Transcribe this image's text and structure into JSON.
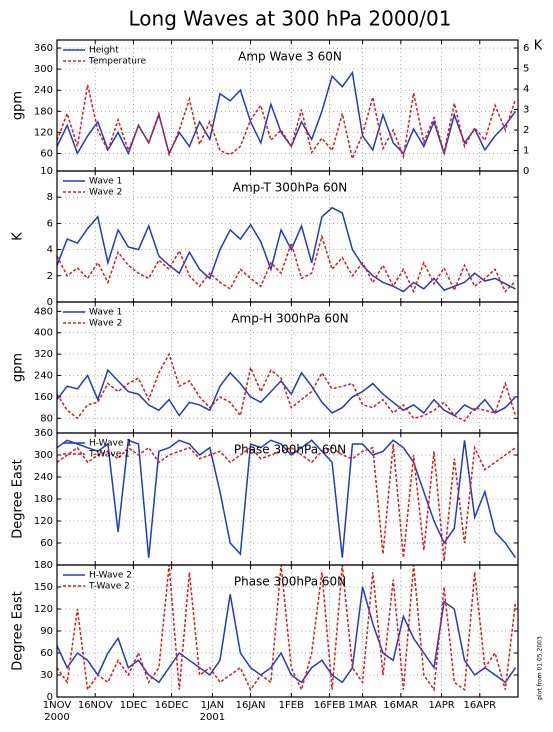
{
  "title": "Long Waves at 300 hPa 2000/01",
  "footnote": "plot from 01.05.2003",
  "chart_data": [
    {
      "type": "line",
      "title": "Amp Wave 3 60N",
      "ylabel": "gpm",
      "y2label": "K",
      "grid": true,
      "legend": "upper left",
      "x": [
        "2000-11-01",
        "2000-11-05",
        "2000-11-09",
        "2000-11-13",
        "2000-11-17",
        "2000-11-21",
        "2000-11-25",
        "2000-11-29",
        "2000-12-03",
        "2000-12-07",
        "2000-12-11",
        "2000-12-15",
        "2000-12-19",
        "2000-12-23",
        "2000-12-27",
        "2000-12-31",
        "2001-01-04",
        "2001-01-08",
        "2001-01-12",
        "2001-01-16",
        "2001-01-20",
        "2001-01-24",
        "2001-01-28",
        "2001-02-01",
        "2001-02-05",
        "2001-02-09",
        "2001-02-13",
        "2001-02-17",
        "2001-02-21",
        "2001-02-25",
        "2001-03-01",
        "2001-03-05",
        "2001-03-09",
        "2001-03-13",
        "2001-03-17",
        "2001-03-21",
        "2001-03-25",
        "2001-03-29",
        "2001-04-02",
        "2001-04-06",
        "2001-04-10",
        "2001-04-14",
        "2001-04-18",
        "2001-04-22",
        "2001-04-26",
        "2001-04-30"
      ],
      "ylim": [
        10,
        383
      ],
      "yticks": [
        10,
        60,
        120,
        180,
        240,
        300,
        360
      ],
      "y2lim": [
        0,
        6.39
      ],
      "y2ticks": [
        0,
        1,
        2,
        3,
        4,
        5,
        6
      ],
      "series": [
        {
          "name": "Height",
          "color": "#1f3cc8",
          "style": "solid",
          "values": [
            80,
            140,
            60,
            110,
            150,
            70,
            120,
            60,
            140,
            90,
            170,
            60,
            120,
            80,
            150,
            100,
            230,
            210,
            240,
            150,
            90,
            200,
            120,
            80,
            150,
            100,
            180,
            280,
            250,
            290,
            110,
            70,
            170,
            90,
            60,
            130,
            80,
            150,
            60,
            170,
            90,
            130,
            70,
            110,
            140,
            180
          ]
        },
        {
          "name": "Temperature",
          "color": "#e01a1a",
          "style": "dashed",
          "axis": "y2",
          "values": [
            1.5,
            2.8,
            1.2,
            4.2,
            2.0,
            1.0,
            2.5,
            1.0,
            2.2,
            1.4,
            2.8,
            0.8,
            2.0,
            3.5,
            1.3,
            2.4,
            1.0,
            0.8,
            1.2,
            2.5,
            3.2,
            1.5,
            2.0,
            1.2,
            3.0,
            0.9,
            1.6,
            1.0,
            2.8,
            0.6,
            1.8,
            3.6,
            1.1,
            2.0,
            0.7,
            3.8,
            1.4,
            2.6,
            0.9,
            3.3,
            1.2,
            2.1,
            1.5,
            3.2,
            2.0,
            3.5
          ]
        }
      ]
    },
    {
      "type": "line",
      "title": "Amp-T 300hPa 60N",
      "ylabel": "K",
      "grid": true,
      "legend": "upper left",
      "x": [
        "2000-11-01",
        "2000-11-05",
        "2000-11-09",
        "2000-11-13",
        "2000-11-17",
        "2000-11-21",
        "2000-11-25",
        "2000-11-29",
        "2000-12-03",
        "2000-12-07",
        "2000-12-11",
        "2000-12-15",
        "2000-12-19",
        "2000-12-23",
        "2000-12-27",
        "2000-12-31",
        "2001-01-04",
        "2001-01-08",
        "2001-01-12",
        "2001-01-16",
        "2001-01-20",
        "2001-01-24",
        "2001-01-28",
        "2001-02-01",
        "2001-02-05",
        "2001-02-09",
        "2001-02-13",
        "2001-02-17",
        "2001-02-21",
        "2001-02-25",
        "2001-03-01",
        "2001-03-05",
        "2001-03-09",
        "2001-03-13",
        "2001-03-17",
        "2001-03-21",
        "2001-03-25",
        "2001-03-29",
        "2001-04-02",
        "2001-04-06",
        "2001-04-10",
        "2001-04-14",
        "2001-04-18",
        "2001-04-22",
        "2001-04-26",
        "2001-04-30"
      ],
      "ylim": [
        0,
        10
      ],
      "yticks": [
        0,
        2,
        4,
        6,
        8
      ],
      "series": [
        {
          "name": "Wave 1",
          "color": "#1f3cc8",
          "style": "solid",
          "values": [
            2.8,
            4.8,
            4.5,
            5.6,
            6.5,
            3.0,
            5.5,
            4.2,
            4.0,
            5.8,
            3.5,
            2.8,
            2.2,
            3.8,
            2.5,
            1.8,
            4.0,
            5.5,
            4.8,
            5.9,
            4.6,
            2.5,
            5.5,
            4.0,
            5.8,
            3.0,
            6.5,
            7.2,
            6.8,
            4.0,
            2.8,
            2.0,
            1.5,
            1.2,
            0.8,
            1.5,
            1.0,
            1.8,
            0.9,
            1.2,
            1.5,
            2.2,
            1.6,
            1.8,
            1.4,
            1.0
          ]
        },
        {
          "name": "Wave 2",
          "color": "#e01a1a",
          "style": "dashed",
          "values": [
            3.5,
            2.0,
            2.6,
            1.8,
            3.0,
            1.5,
            3.8,
            2.8,
            2.2,
            1.8,
            3.2,
            2.5,
            3.9,
            2.0,
            1.2,
            2.2,
            1.5,
            1.0,
            2.5,
            1.8,
            1.2,
            3.0,
            2.2,
            4.5,
            1.8,
            2.2,
            5.0,
            2.5,
            3.4,
            2.0,
            3.0,
            1.5,
            2.8,
            1.2,
            2.5,
            0.8,
            3.0,
            1.4,
            2.6,
            0.9,
            2.8,
            1.2,
            1.8,
            2.5,
            0.8,
            1.6
          ]
        }
      ]
    },
    {
      "type": "line",
      "title": "Amp-H 300hPa 60N",
      "ylabel": "gpm",
      "grid": true,
      "legend": "upper left",
      "x": [
        "2000-11-01",
        "2000-11-05",
        "2000-11-09",
        "2000-11-13",
        "2000-11-17",
        "2000-11-21",
        "2000-11-25",
        "2000-11-29",
        "2000-12-03",
        "2000-12-07",
        "2000-12-11",
        "2000-12-15",
        "2000-12-19",
        "2000-12-23",
        "2000-12-27",
        "2000-12-31",
        "2001-01-04",
        "2001-01-08",
        "2001-01-12",
        "2001-01-16",
        "2001-01-20",
        "2001-01-24",
        "2001-01-28",
        "2001-02-01",
        "2001-02-05",
        "2001-02-09",
        "2001-02-13",
        "2001-02-17",
        "2001-02-21",
        "2001-02-25",
        "2001-03-01",
        "2001-03-05",
        "2001-03-09",
        "2001-03-13",
        "2001-03-17",
        "2001-03-21",
        "2001-03-25",
        "2001-03-29",
        "2001-04-02",
        "2001-04-06",
        "2001-04-10",
        "2001-04-14",
        "2001-04-18",
        "2001-04-22",
        "2001-04-26",
        "2001-04-30"
      ],
      "ylim": [
        25,
        515
      ],
      "yticks": [
        80,
        160,
        240,
        320,
        400,
        480
      ],
      "series": [
        {
          "name": "Wave 1",
          "color": "#1f3cc8",
          "style": "solid",
          "values": [
            150,
            200,
            190,
            240,
            150,
            260,
            220,
            180,
            170,
            130,
            110,
            150,
            90,
            140,
            130,
            110,
            200,
            250,
            210,
            160,
            140,
            180,
            220,
            170,
            250,
            200,
            140,
            100,
            120,
            160,
            180,
            210,
            170,
            140,
            110,
            130,
            100,
            150,
            110,
            90,
            130,
            110,
            150,
            100,
            120,
            160
          ]
        },
        {
          "name": "Wave 2",
          "color": "#e01a1a",
          "style": "dashed",
          "values": [
            170,
            110,
            80,
            130,
            140,
            210,
            180,
            210,
            230,
            150,
            250,
            320,
            200,
            220,
            160,
            120,
            160,
            140,
            90,
            270,
            180,
            260,
            230,
            120,
            150,
            180,
            250,
            190,
            200,
            210,
            130,
            120,
            150,
            100,
            130,
            80,
            90,
            110,
            140,
            90,
            70,
            120,
            110,
            100,
            210,
            90
          ]
        }
      ]
    },
    {
      "type": "line",
      "title": "Phase 300hPa 60N",
      "ylabel": "Degree East",
      "grid": true,
      "legend": "upper left",
      "x": [
        "2000-11-01",
        "2000-11-05",
        "2000-11-09",
        "2000-11-13",
        "2000-11-17",
        "2000-11-21",
        "2000-11-25",
        "2000-11-29",
        "2000-12-03",
        "2000-12-07",
        "2000-12-11",
        "2000-12-15",
        "2000-12-19",
        "2000-12-23",
        "2000-12-27",
        "2000-12-31",
        "2001-01-04",
        "2001-01-08",
        "2001-01-12",
        "2001-01-16",
        "2001-01-20",
        "2001-01-24",
        "2001-01-28",
        "2001-02-01",
        "2001-02-05",
        "2001-02-09",
        "2001-02-13",
        "2001-02-17",
        "2001-02-21",
        "2001-02-25",
        "2001-03-01",
        "2001-03-05",
        "2001-03-09",
        "2001-03-13",
        "2001-03-17",
        "2001-03-21",
        "2001-03-25",
        "2001-03-29",
        "2001-04-02",
        "2001-04-06",
        "2001-04-10",
        "2001-04-14",
        "2001-04-18",
        "2001-04-22",
        "2001-04-26",
        "2001-04-30"
      ],
      "ylim": [
        0,
        360
      ],
      "yticks": [
        60,
        120,
        180,
        240,
        300,
        360
      ],
      "series": [
        {
          "name": "H-Wave 1",
          "color": "#1f3cc8",
          "style": "solid",
          "values": [
            320,
            340,
            330,
            320,
            310,
            330,
            90,
            340,
            330,
            20,
            310,
            320,
            340,
            330,
            300,
            320,
            200,
            60,
            30,
            330,
            320,
            340,
            330,
            300,
            320,
            340,
            310,
            280,
            20,
            330,
            330,
            300,
            310,
            340,
            320,
            280,
            200,
            120,
            60,
            100,
            340,
            130,
            200,
            90,
            60,
            20
          ]
        },
        {
          "name": "T-Wave 1",
          "color": "#e01a1a",
          "style": "dashed",
          "values": [
            280,
            300,
            320,
            280,
            300,
            310,
            290,
            320,
            300,
            320,
            280,
            300,
            310,
            320,
            290,
            300,
            310,
            280,
            300,
            320,
            290,
            300,
            310,
            320,
            300,
            280,
            310,
            320,
            300,
            290,
            310,
            320,
            30,
            330,
            20,
            300,
            40,
            310,
            10,
            290,
            60,
            320,
            260,
            280,
            300,
            320
          ]
        }
      ]
    },
    {
      "type": "line",
      "title": "Phase 300hPa 60N",
      "ylabel": "Degree East",
      "grid": true,
      "legend": "upper left",
      "x": [
        "2000-11-01",
        "2000-11-05",
        "2000-11-09",
        "2000-11-13",
        "2000-11-17",
        "2000-11-21",
        "2000-11-25",
        "2000-11-29",
        "2000-12-03",
        "2000-12-07",
        "2000-12-11",
        "2000-12-15",
        "2000-12-19",
        "2000-12-23",
        "2000-12-27",
        "2000-12-31",
        "2001-01-04",
        "2001-01-08",
        "2001-01-12",
        "2001-01-16",
        "2001-01-20",
        "2001-01-24",
        "2001-01-28",
        "2001-02-01",
        "2001-02-05",
        "2001-02-09",
        "2001-02-13",
        "2001-02-17",
        "2001-02-21",
        "2001-02-25",
        "2001-03-01",
        "2001-03-05",
        "2001-03-09",
        "2001-03-13",
        "2001-03-17",
        "2001-03-21",
        "2001-03-25",
        "2001-03-29",
        "2001-04-02",
        "2001-04-06",
        "2001-04-10",
        "2001-04-14",
        "2001-04-18",
        "2001-04-22",
        "2001-04-26",
        "2001-04-30"
      ],
      "ylim": [
        0,
        180
      ],
      "yticks": [
        0,
        30,
        60,
        90,
        120,
        150,
        180
      ],
      "xlim": [
        "2000-11-01",
        "2001-04-30"
      ],
      "xticks": [
        {
          "value": "2000-11-01",
          "label": "1NOV"
        },
        {
          "value": "2000-11-16",
          "label": "16NOV"
        },
        {
          "value": "2000-12-01",
          "label": "1DEC"
        },
        {
          "value": "2000-12-16",
          "label": "16DEC"
        },
        {
          "value": "2001-01-01",
          "label": "1JAN"
        },
        {
          "value": "2001-01-16",
          "label": "16JAN"
        },
        {
          "value": "2001-02-01",
          "label": "1FEB"
        },
        {
          "value": "2001-02-16",
          "label": "16FEB"
        },
        {
          "value": "2001-03-01",
          "label": "1MAR"
        },
        {
          "value": "2001-03-16",
          "label": "16MAR"
        },
        {
          "value": "2001-04-01",
          "label": "1APR"
        },
        {
          "value": "2001-04-16",
          "label": "16APR"
        }
      ],
      "year_labels": [
        {
          "value": "2000-11-01",
          "label": "2000"
        },
        {
          "value": "2001-01-01",
          "label": "2001"
        }
      ],
      "series": [
        {
          "name": "H-Wave 2",
          "color": "#1f3cc8",
          "style": "solid",
          "values": [
            70,
            40,
            60,
            50,
            30,
            60,
            80,
            40,
            50,
            30,
            20,
            40,
            60,
            50,
            40,
            30,
            50,
            140,
            60,
            40,
            30,
            40,
            60,
            30,
            20,
            40,
            50,
            30,
            20,
            40,
            150,
            100,
            60,
            50,
            110,
            80,
            60,
            40,
            130,
            120,
            50,
            30,
            40,
            30,
            20,
            40
          ]
        },
        {
          "name": "T-Wave 2",
          "color": "#e01a1a",
          "style": "dashed",
          "values": [
            40,
            20,
            120,
            10,
            30,
            20,
            50,
            30,
            60,
            20,
            40,
            180,
            10,
            170,
            30,
            40,
            20,
            30,
            40,
            10,
            30,
            20,
            180,
            40,
            10,
            60,
            170,
            10,
            180,
            40,
            20,
            170,
            30,
            160,
            10,
            180,
            30,
            10,
            150,
            20,
            10,
            170,
            40,
            60,
            10,
            130
          ]
        }
      ]
    }
  ]
}
